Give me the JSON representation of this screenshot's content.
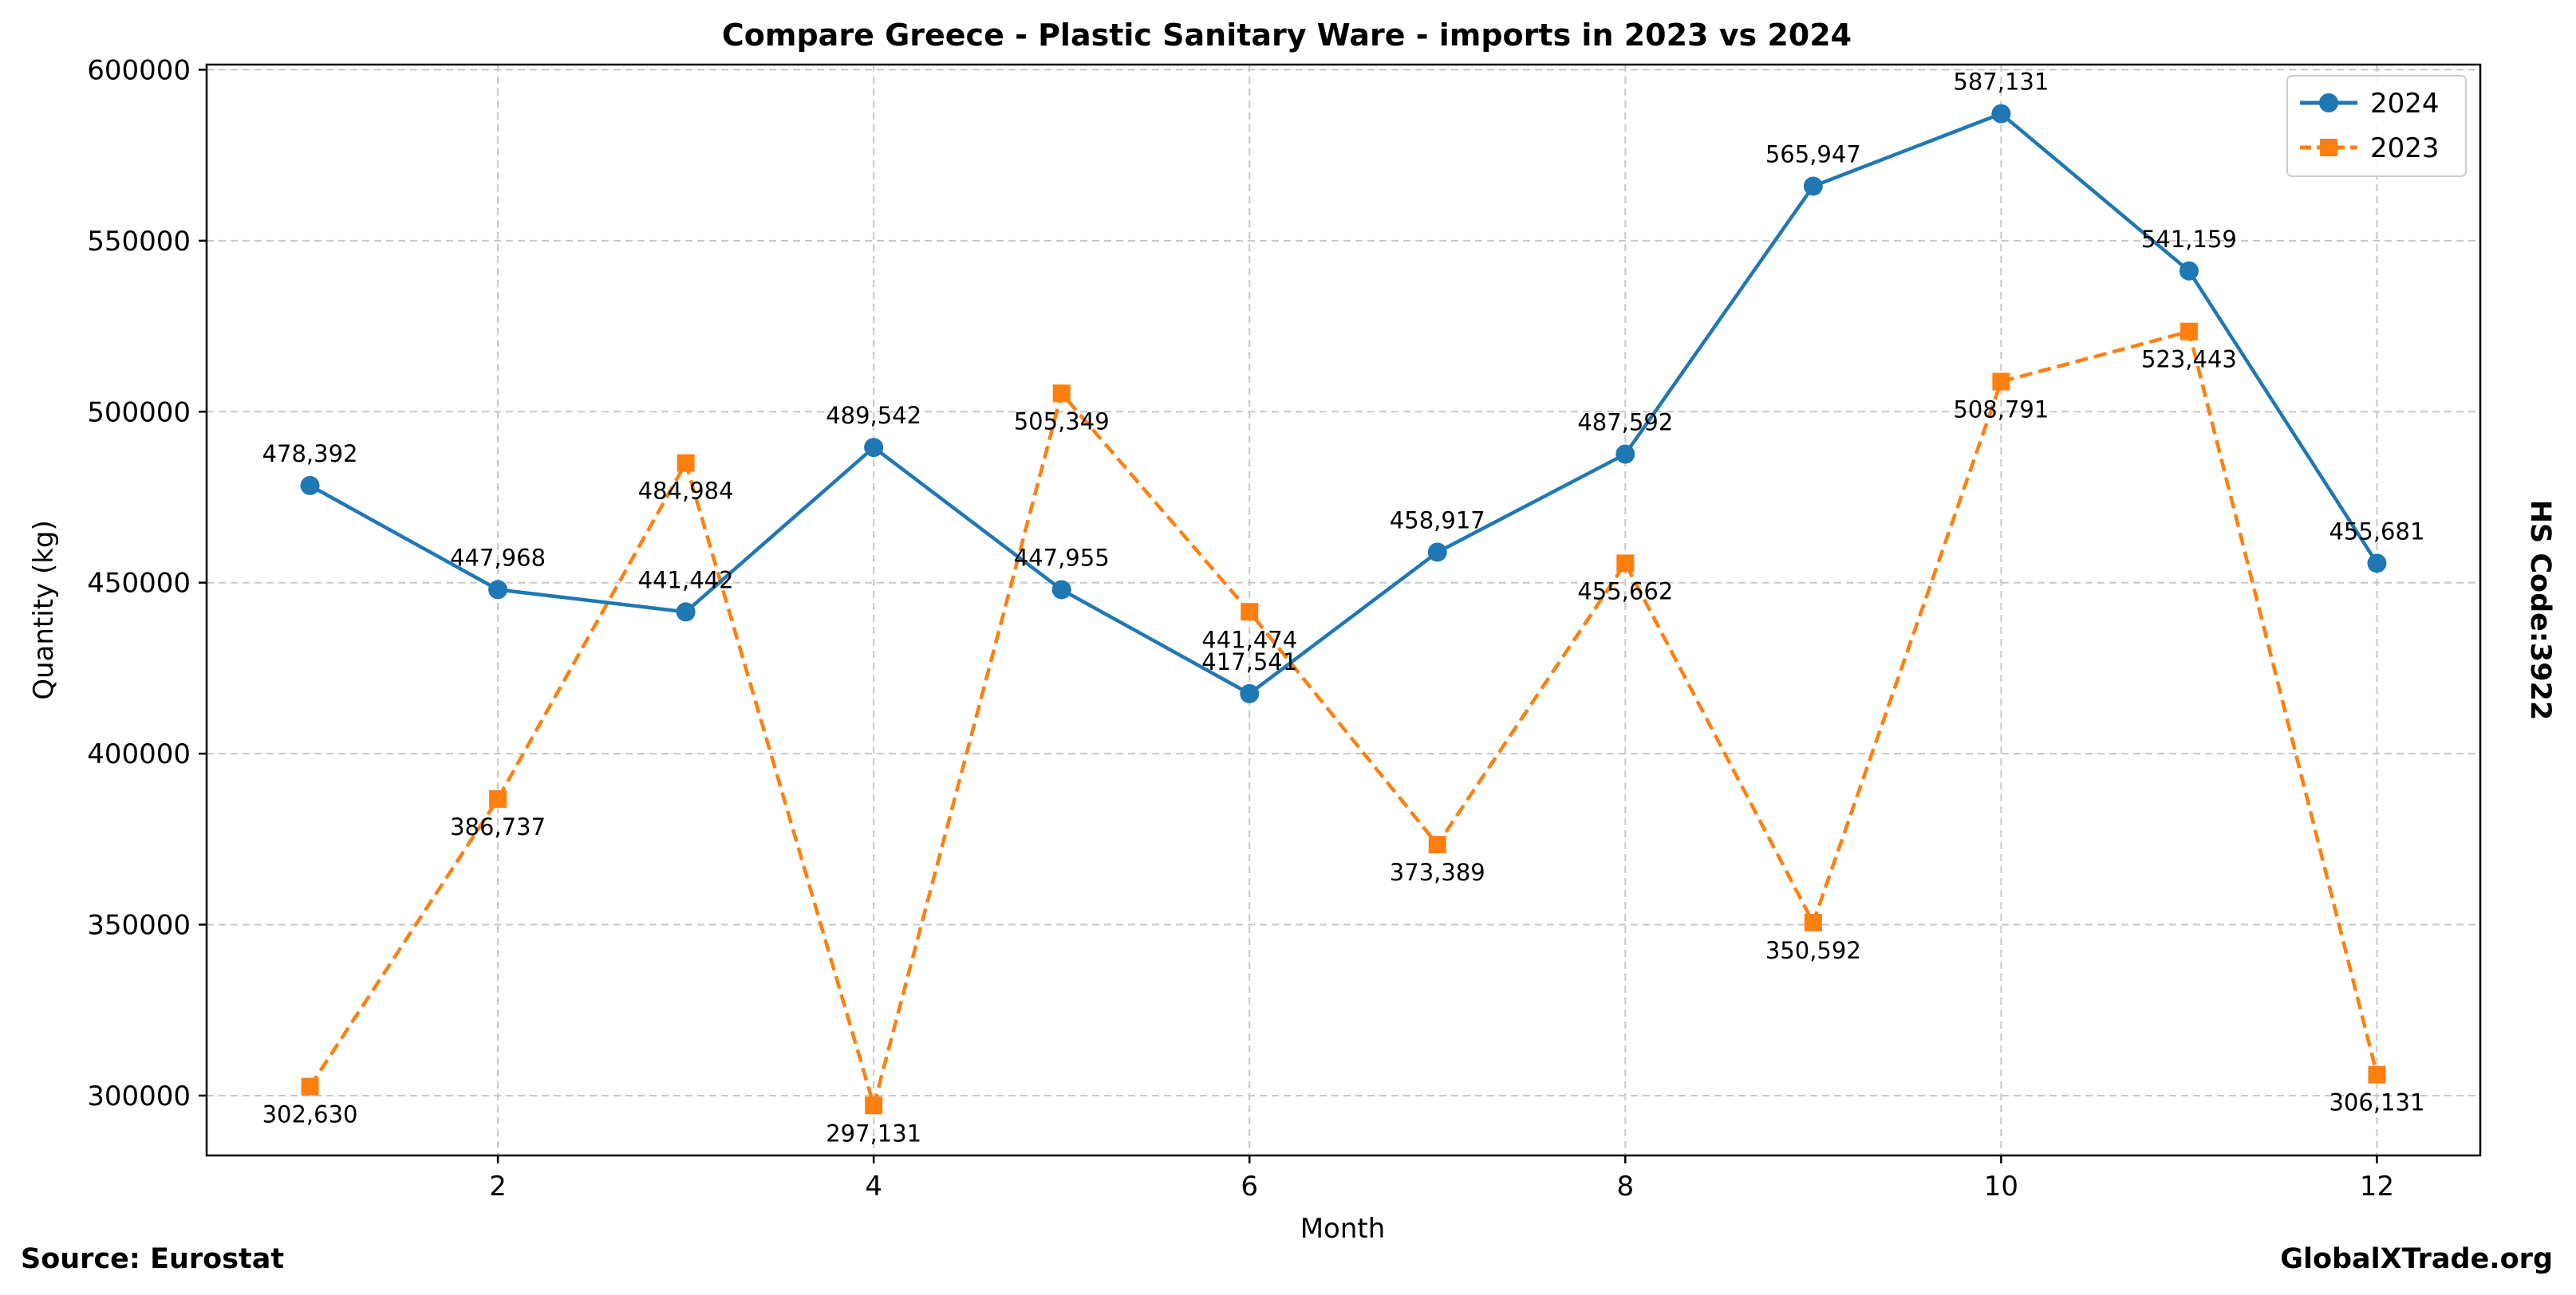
{
  "chart_data": {
    "type": "line",
    "title": "Compare Greece - Plastic Sanitary Ware - imports in 2023 vs 2024",
    "xlabel": "Month",
    "ylabel": "Quantity (kg)",
    "right_label": "HS Code:3922",
    "source": "Source: Eurostat",
    "brand": "GlobalXTrade.org",
    "x": [
      1,
      2,
      3,
      4,
      5,
      6,
      7,
      8,
      9,
      10,
      11,
      12
    ],
    "xlim": [
      0.45,
      12.55
    ],
    "ylim": [
      282500,
      601500
    ],
    "xticks": [
      2,
      4,
      6,
      8,
      10,
      12
    ],
    "yticks": [
      300000,
      350000,
      400000,
      450000,
      500000,
      550000,
      600000
    ],
    "grid": true,
    "legend_position": "top-right",
    "series": [
      {
        "name": "2024",
        "color": "#1f77b4",
        "marker": "circle",
        "linestyle": "solid",
        "label_position": "above",
        "values": [
          478392,
          447968,
          441442,
          489542,
          447955,
          417541,
          458917,
          487592,
          565947,
          587131,
          541159,
          455681
        ],
        "labels": [
          "478,392",
          "447,968",
          "441,442",
          "489,542",
          "447,955",
          "417,541",
          "458,917",
          "487,592",
          "565,947",
          "587,131",
          "541,159",
          "455,681"
        ]
      },
      {
        "name": "2023",
        "color": "#ff7f0e",
        "marker": "square",
        "linestyle": "dashed",
        "label_position": "below",
        "values": [
          302630,
          386737,
          484984,
          297131,
          505349,
          441474,
          373389,
          455662,
          350592,
          508791,
          523443,
          306131
        ],
        "labels": [
          "302,630",
          "386,737",
          "484,984",
          "297,131",
          "505,349",
          "441,474",
          "373,389",
          "455,662",
          "350,592",
          "508,791",
          "523,443",
          "306,131"
        ]
      }
    ]
  }
}
